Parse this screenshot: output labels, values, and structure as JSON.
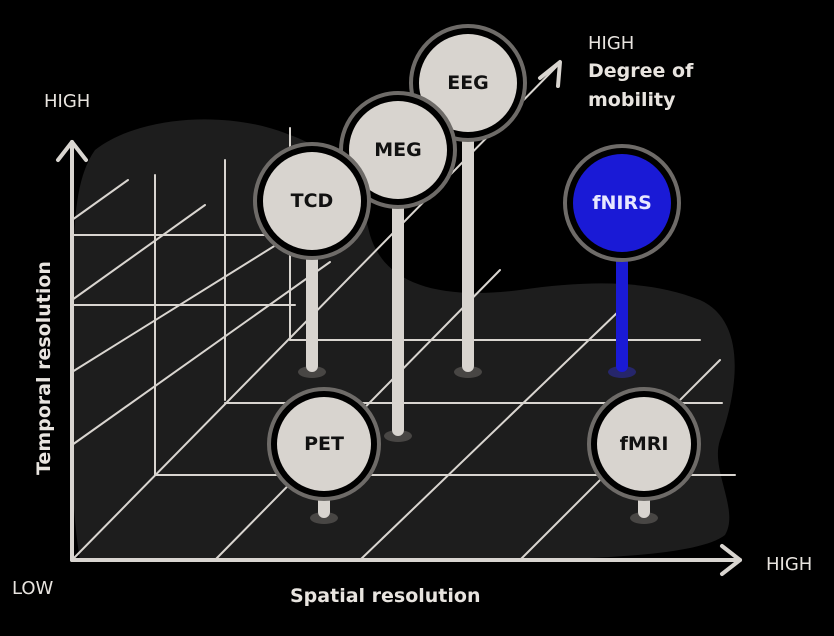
{
  "axes": {
    "origin_label": "LOW",
    "x": {
      "title": "Spatial resolution",
      "high_label": "HIGH"
    },
    "y": {
      "title": "Temporal resolution",
      "high_label": "HIGH"
    },
    "z": {
      "title_line1": "Degree of",
      "title_line2": "mobility",
      "high_label": "HIGH"
    }
  },
  "techniques": [
    {
      "id": "eeg",
      "label": "EEG",
      "color": "#d8d4cf",
      "highlight": false
    },
    {
      "id": "meg",
      "label": "MEG",
      "color": "#d8d4cf",
      "highlight": false
    },
    {
      "id": "tcd",
      "label": "TCD",
      "color": "#d8d4cf",
      "highlight": false
    },
    {
      "id": "fnirs",
      "label": "fNIRS",
      "color": "#1a1ad6",
      "highlight": true
    },
    {
      "id": "pet",
      "label": "PET",
      "color": "#d8d4cf",
      "highlight": false
    },
    {
      "id": "fmri",
      "label": "fMRI",
      "color": "#d8d4cf",
      "highlight": false
    }
  ],
  "colors": {
    "background": "#000000",
    "blob": "#1d1d1d",
    "grid": "#d9d5d0",
    "pin": "#d8d4cf",
    "pin_text": "#111111",
    "accent": "#1a1ad6",
    "accent_text": "#e8e8ff"
  }
}
